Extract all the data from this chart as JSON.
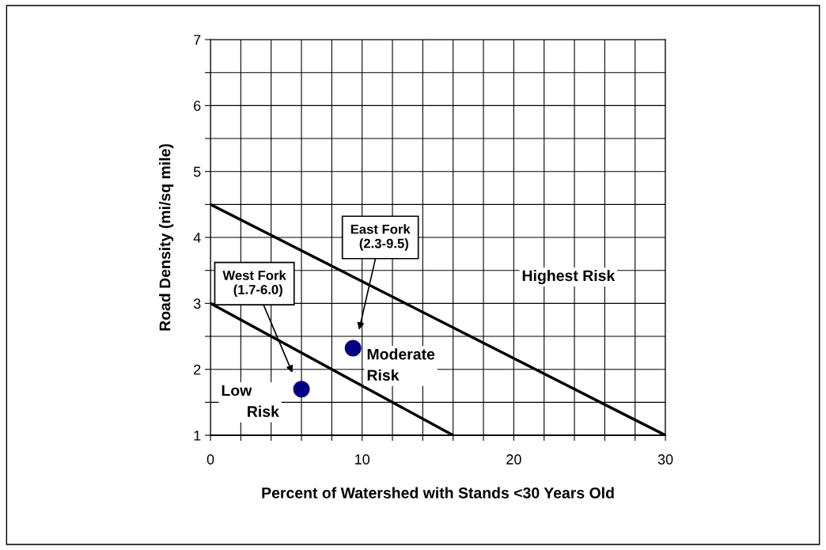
{
  "chart_data": {
    "type": "scatter",
    "xlabel": "Percent of Watershed with Stands <30 Years Old",
    "ylabel": "Road Density (mi/sq mile)",
    "xlim": [
      0,
      30
    ],
    "ylim": [
      1,
      7
    ],
    "xticks": [
      0,
      {
        "value": 2,
        "label": null
      },
      {
        "value": 4,
        "label": null
      },
      {
        "value": 6,
        "label": null
      },
      {
        "value": 8,
        "label": null
      },
      10,
      {
        "value": 12,
        "label": null
      },
      {
        "value": 14,
        "label": null
      },
      {
        "value": 16,
        "label": null
      },
      {
        "value": 18,
        "label": null
      },
      20,
      {
        "value": 22,
        "label": null
      },
      {
        "value": 24,
        "label": null
      },
      {
        "value": 26,
        "label": null
      },
      {
        "value": 28,
        "label": null
      },
      30
    ],
    "yticks": [
      1,
      {
        "value": 1.5,
        "label": null
      },
      2,
      {
        "value": 2.5,
        "label": null
      },
      3,
      {
        "value": 3.5,
        "label": null
      },
      4,
      {
        "value": 4.5,
        "label": null
      },
      5,
      {
        "value": 5.5,
        "label": null
      },
      6,
      {
        "value": 6.5,
        "label": null
      },
      7
    ],
    "grid": true,
    "series": [
      {
        "color": "#000080",
        "marker": "circle",
        "x": [
          6.0,
          9.4
        ],
        "values": [
          1.7,
          2.32
        ]
      },
      {
        "type": "line",
        "color": "#000000",
        "x": [
          0,
          16
        ],
        "values": [
          3,
          1
        ]
      },
      {
        "type": "line",
        "color": "#000000",
        "x": [
          0,
          30
        ],
        "values": [
          4.5,
          1
        ]
      }
    ],
    "annotations": [
      "West Fork\n  (1.7-6.0)",
      "East Fork\n  (2.3-9.5)",
      "Highest Risk",
      "Moderate\nRisk",
      "Low\n      Risk"
    ]
  }
}
